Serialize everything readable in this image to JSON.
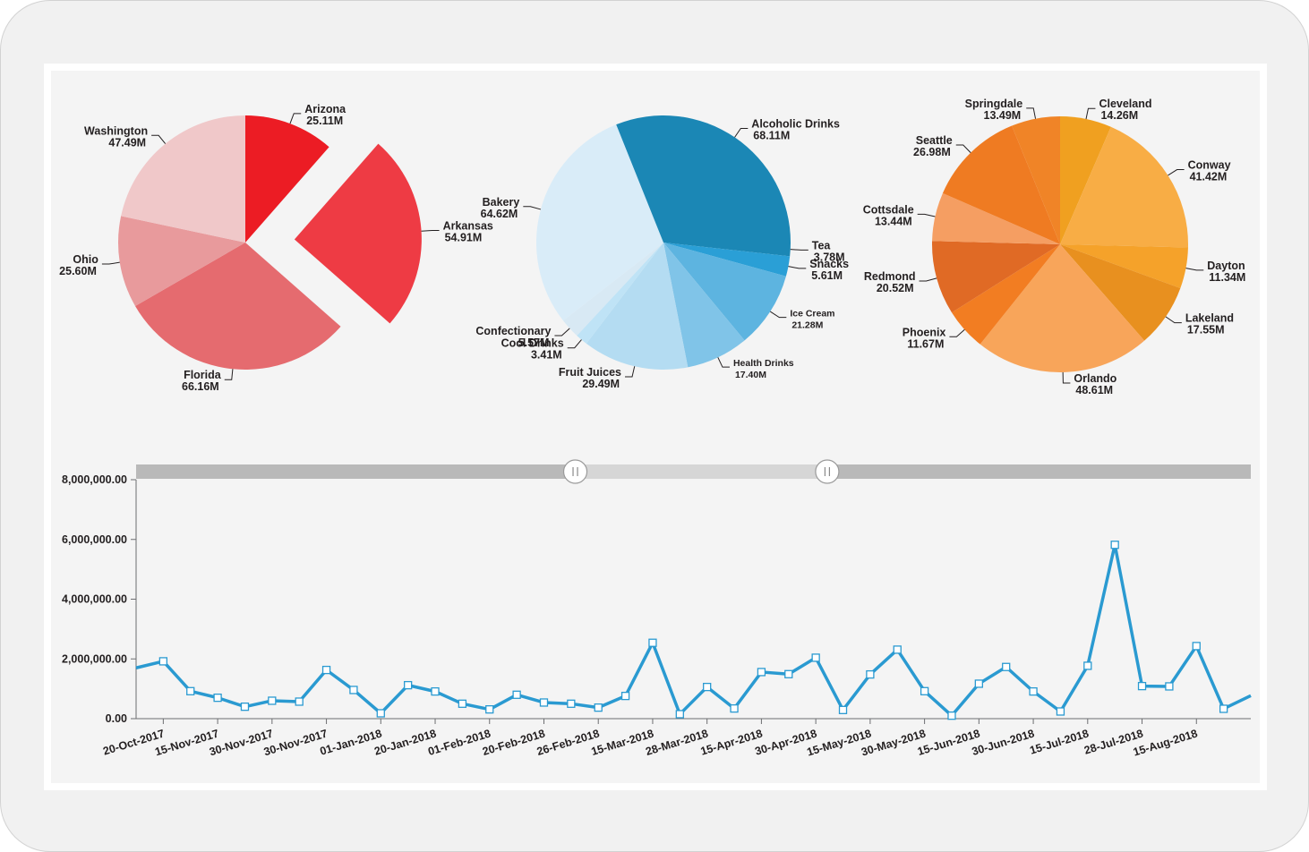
{
  "chart_data": [
    {
      "type": "pie",
      "colors": [
        "#ec1c24",
        "#ee3b44",
        "#e56b6f",
        "#e89a9c",
        "#f0c8c9"
      ],
      "slices": [
        {
          "label": "Arizona",
          "value": "25.11M",
          "v": 25.11
        },
        {
          "label": "Arkansas",
          "value": "54.91M",
          "v": 54.91
        },
        {
          "label": "Florida",
          "value": "66.16M",
          "v": 66.16
        },
        {
          "label": "Ohio",
          "value": "25.60M",
          "v": 25.6
        },
        {
          "label": "Washington",
          "value": "47.49M",
          "v": 47.49
        }
      ],
      "exploded": "Arkansas"
    },
    {
      "type": "pie",
      "colors": [
        "#1b87b5",
        "#2a9fd6",
        "#5db4e0",
        "#80c4e8",
        "#b4dcf2",
        "#bfe3f6",
        "#d8e9f4",
        "#d9ecf8"
      ],
      "slices": [
        {
          "label": "Tea",
          "value": "3.78M",
          "v": 3.78
        },
        {
          "label": "Snacks",
          "value": "5.61M",
          "v": 5.61
        },
        {
          "label": "Ice Cream",
          "value": "21.28M",
          "v": 21.28
        },
        {
          "label": "Health Drinks",
          "value": "17.40M",
          "v": 17.4
        },
        {
          "label": "Fruit Juices",
          "value": "29.49M",
          "v": 29.49
        },
        {
          "label": "Cool Drinks",
          "value": "3.41M",
          "v": 3.41
        },
        {
          "label": "Confectionary",
          "value": "5.57M",
          "v": 5.57
        },
        {
          "label": "Bakery",
          "value": "64.62M",
          "v": 64.62
        },
        {
          "label": "Alcoholic Drinks",
          "value": "68.11M",
          "v": 68.11
        }
      ]
    },
    {
      "type": "pie",
      "colors": [
        "#f0a020",
        "#f8ad45",
        "#f5a22a",
        "#e8901f",
        "#f8a55a",
        "#f27d22",
        "#e06a25",
        "#f59e62",
        "#ef7b22",
        "#f08427"
      ],
      "slices": [
        {
          "label": "Cleveland",
          "value": "14.26M",
          "v": 14.26
        },
        {
          "label": "Conway",
          "value": "41.42M",
          "v": 41.42
        },
        {
          "label": "Dayton",
          "value": "11.34M",
          "v": 11.34
        },
        {
          "label": "Lakeland",
          "value": "17.55M",
          "v": 17.55
        },
        {
          "label": "Orlando",
          "value": "48.61M",
          "v": 48.61
        },
        {
          "label": "Phoenix",
          "value": "11.67M",
          "v": 11.67
        },
        {
          "label": "Redmond",
          "value": "20.52M",
          "v": 20.52
        },
        {
          "label": "Cottsdale",
          "value": "13.44M",
          "v": 13.44
        },
        {
          "label": "Seattle",
          "value": "26.98M",
          "v": 26.98
        },
        {
          "label": "Springdale",
          "value": "13.49M",
          "v": 13.49
        }
      ]
    },
    {
      "type": "line",
      "color": "#2a9ad1",
      "y_ticks": [
        "8,000,000.00",
        "6,000,000.00",
        "4,000,000.00",
        "2,000,000.00",
        "0.00"
      ],
      "ylim": [
        0,
        8000000
      ],
      "x_ticks": [
        "20-Oct-2017",
        "15-Nov-2017",
        "30-Nov-2017",
        "30-Nov-2017",
        "01-Jan-2018",
        "20-Jan-2018",
        "01-Feb-2018",
        "20-Feb-2018",
        "26-Feb-2018",
        "15-Mar-2018",
        "28-Mar-2018",
        "15-Apr-2018",
        "30-Apr-2018",
        "15-May-2018",
        "30-May-2018",
        "15-Jun-2018",
        "30-Jun-2018",
        "15-Jul-2018",
        "28-Jul-2018",
        "15-Aug-2018"
      ],
      "values": [
        1700000,
        1920000,
        920000,
        700000,
        400000,
        600000,
        570000,
        1630000,
        960000,
        180000,
        1120000,
        910000,
        500000,
        310000,
        800000,
        540000,
        500000,
        370000,
        760000,
        2540000,
        150000,
        1060000,
        340000,
        1560000,
        1490000,
        2040000,
        290000,
        1480000,
        2310000,
        920000,
        100000,
        1170000,
        1730000,
        910000,
        240000,
        1770000,
        5820000,
        1090000,
        1080000,
        2430000,
        330000,
        770000
      ],
      "range_selector": {
        "start": 0.394,
        "end": 0.62
      }
    }
  ]
}
